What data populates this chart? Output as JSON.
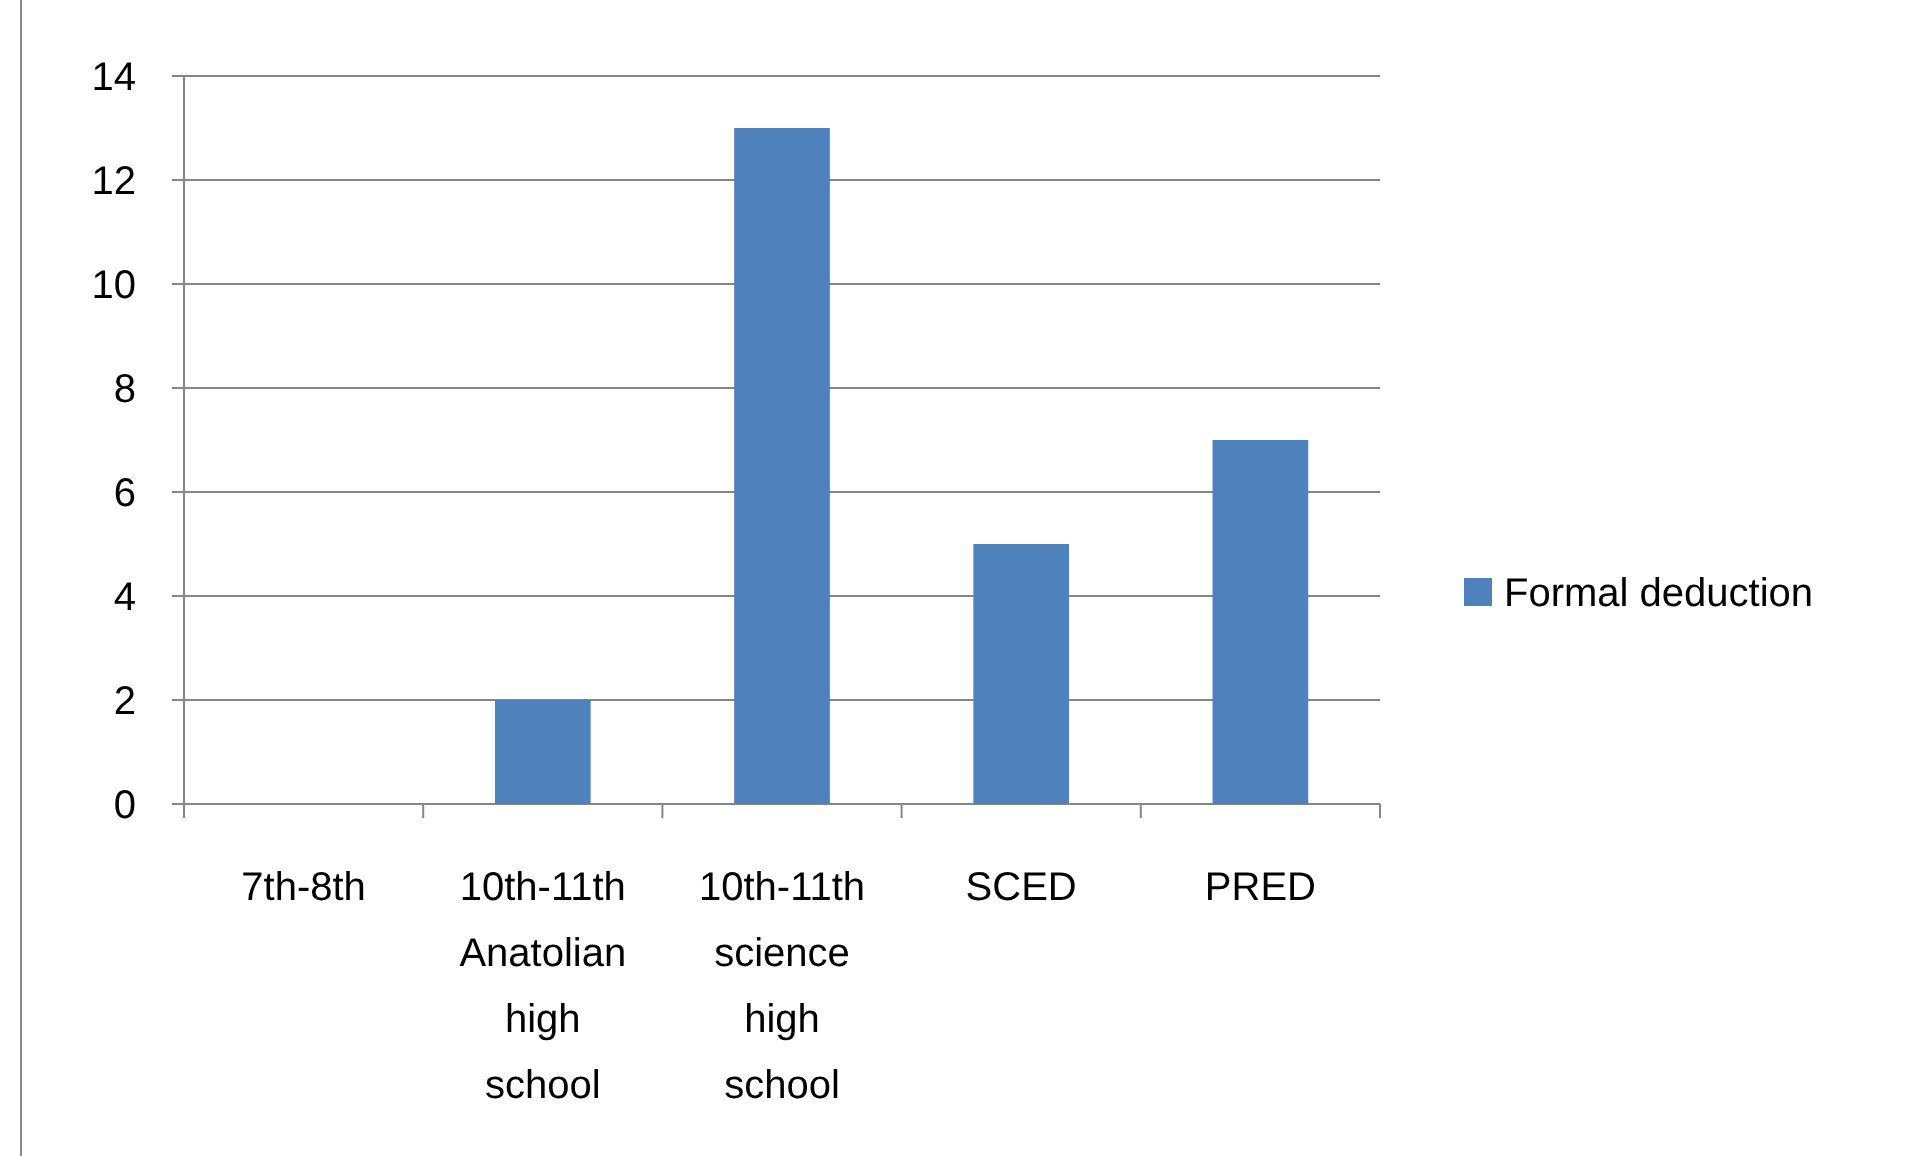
{
  "chart_data": {
    "type": "bar",
    "categories": [
      "7th-8th",
      "10th-11th Anatolian high school",
      "10th-11th science high school",
      "SCED",
      "PRED"
    ],
    "series": [
      {
        "name": "Formal deduction",
        "color": "#4f81bd",
        "values": [
          0,
          2,
          13,
          5,
          7
        ]
      }
    ],
    "ylim": [
      0,
      14
    ],
    "yticks": [
      0,
      2,
      4,
      6,
      8,
      10,
      12,
      14
    ],
    "grid": "y",
    "legend": "right"
  }
}
